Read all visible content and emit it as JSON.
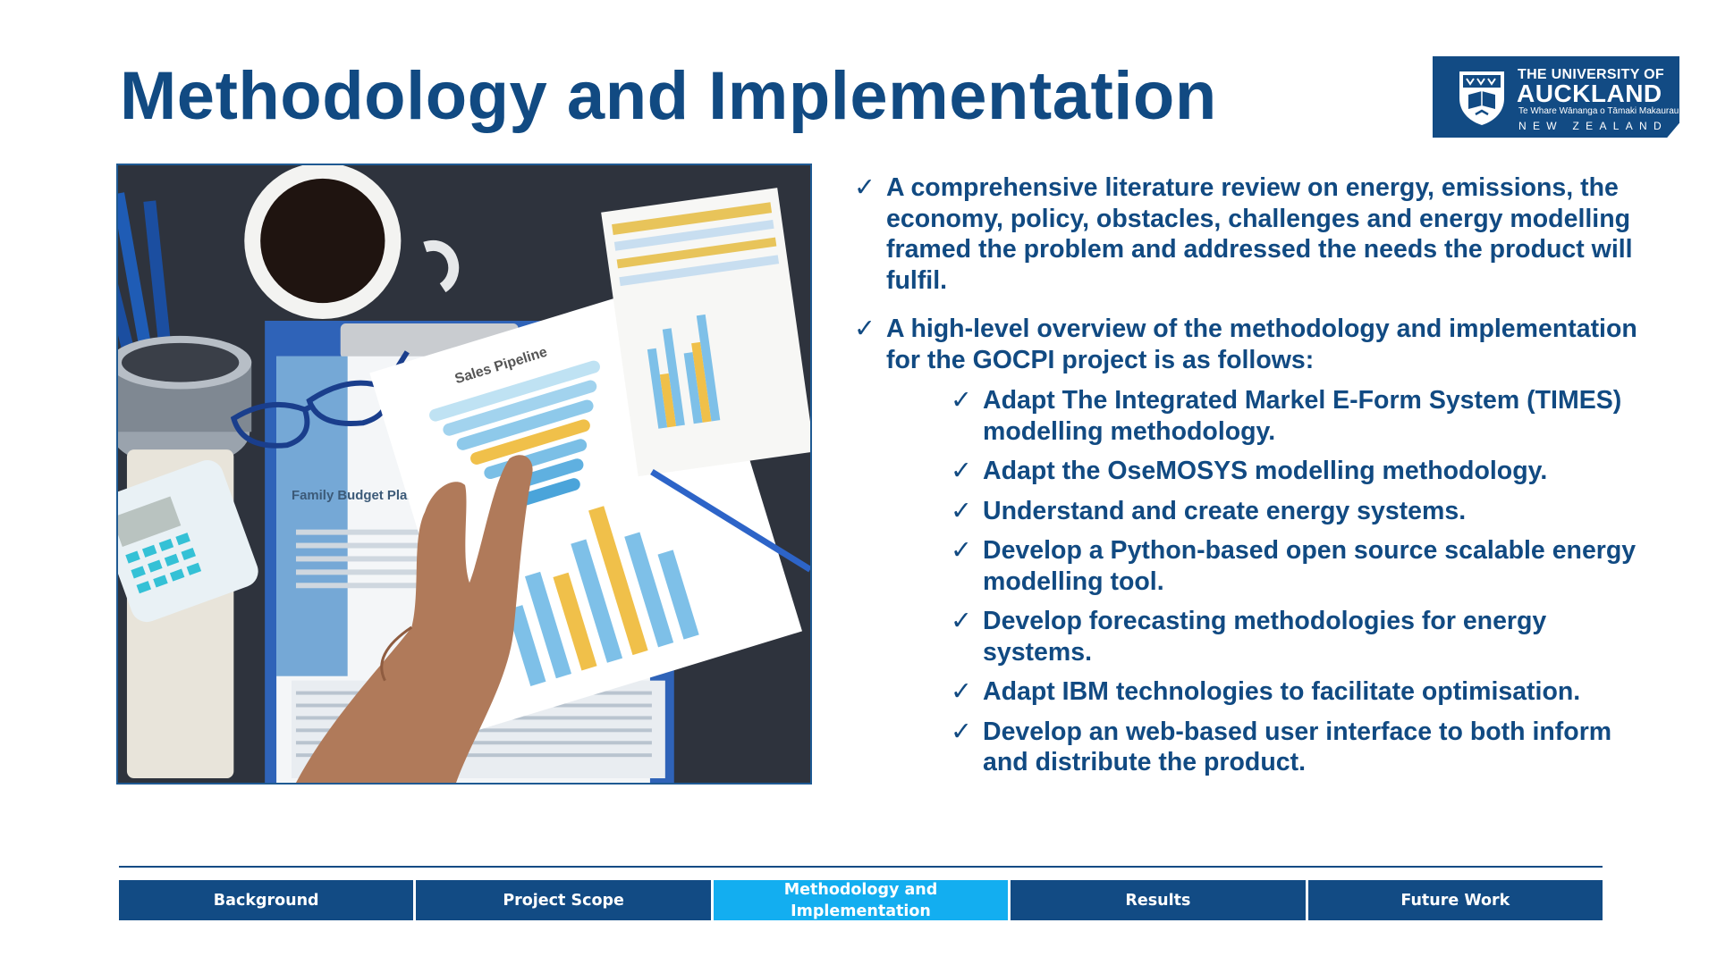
{
  "slide": {
    "title": "Methodology and Implementation"
  },
  "logo": {
    "line1": "THE UNIVERSITY OF",
    "line2": "AUCKLAND",
    "line3": "Te Whare Wānanga o Tāmaki Makaurau",
    "line4": "NEW ZEALAND"
  },
  "photo": {
    "planner_title": "Family Budget Planner",
    "pipeline_title": "Sales Pipeline"
  },
  "bullets": {
    "check": "✓",
    "items": [
      "A comprehensive literature review on energy, emissions, the economy, policy, obstacles, challenges and energy modelling framed the problem and addressed the needs the product will fulfil.",
      "A high-level overview of the methodology and implementation for the GOCPI project is as follows:"
    ],
    "subitems": [
      "Adapt The Integrated Markel E-Form System (TIMES) modelling methodology.",
      "Adapt the OseMOSYS modelling methodology.",
      "Understand and create energy systems.",
      "Develop a Python-based open source scalable energy modelling tool.",
      "Develop forecasting methodologies for energy systems.",
      "Adapt IBM technologies to facilitate optimisation.",
      "Develop an web-based user interface to both inform and distribute the product."
    ]
  },
  "nav": {
    "tabs": [
      {
        "label": "Background"
      },
      {
        "label": "Project Scope"
      },
      {
        "label": "Methodology and Implementation"
      },
      {
        "label": "Results"
      },
      {
        "label": "Future Work"
      }
    ],
    "active_index": 2
  },
  "colors": {
    "brand_blue": "#124b84",
    "active_tab": "#13aef0",
    "text": "#114a82"
  }
}
